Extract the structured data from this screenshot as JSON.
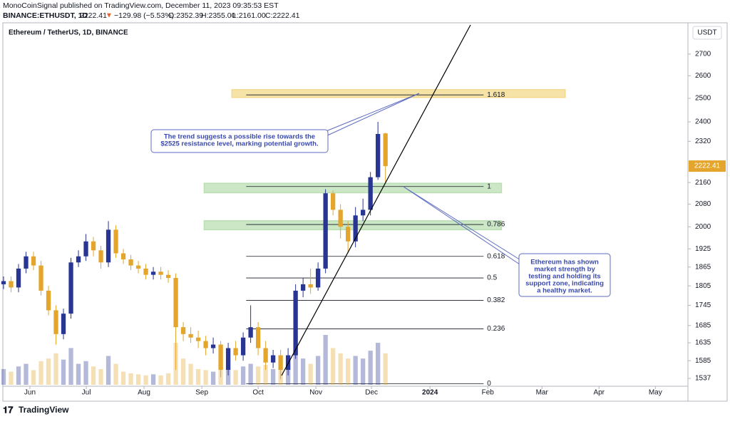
{
  "header": {
    "publisher": "MonoCoinSignal published on TradingView.com, December 11, 2023 09:35:53 EST",
    "symbol": "BINANCE:ETHUSDT, 1D",
    "last": "2222.41",
    "arrow": "▼",
    "change": "−129.98 (−5.53%)",
    "open": "O:2352.39",
    "high": "H:2355.00",
    "low": "L:2161.00",
    "close": "C:2222.41"
  },
  "footer": {
    "brand": "TradingView"
  },
  "chart_data": {
    "type": "candlestick",
    "title": "Ethereum / TetherUS, 1D, BINANCE",
    "currency": "USDT",
    "log_scale": true,
    "ylim": [
      1520,
      2840
    ],
    "yticks": [
      2700,
      2600,
      2500,
      2400,
      2320,
      2160,
      2080,
      2000,
      1925,
      1865,
      1805,
      1745,
      1685,
      1635,
      1585,
      1537
    ],
    "xlim": [
      0,
      91.4
    ],
    "xticks": [
      {
        "value": 3.52,
        "label": "Jun"
      },
      {
        "value": 11.05,
        "label": "Jul"
      },
      {
        "value": 18.76,
        "label": "Aug"
      },
      {
        "value": 26.48,
        "label": "Sep"
      },
      {
        "value": 34,
        "label": "Oct"
      },
      {
        "value": 41.71,
        "label": "Nov"
      },
      {
        "value": 49.14,
        "label": "Dec"
      },
      {
        "value": 56.95,
        "label": "2024"
      },
      {
        "value": 64.67,
        "label": "Feb"
      },
      {
        "value": 71.9,
        "label": "Mar"
      },
      {
        "value": 79.52,
        "label": "Apr"
      },
      {
        "value": 87.05,
        "label": "May"
      }
    ],
    "up_color": "#283593",
    "down_color": "#e3a52b",
    "open": [
      1810,
      1820,
      1800,
      1860,
      1900,
      1870,
      1790,
      1730,
      1660,
      1720,
      1880,
      1900,
      1950,
      1920,
      1880,
      1990,
      1910,
      1890,
      1870,
      1860,
      1840,
      1850,
      1840,
      1830,
      1680,
      1660,
      1650,
      1640,
      1620,
      1630,
      1560,
      1620,
      1600,
      1650,
      1680,
      1620,
      1580,
      1600,
      1560,
      1600,
      1790,
      1810,
      1800,
      1860,
      2120,
      2060,
      2000,
      1950,
      2040,
      2060,
      2180,
      2352.39
    ],
    "high": [
      1835,
      1835,
      1875,
      1915,
      1915,
      1885,
      1805,
      1745,
      1735,
      1895,
      1920,
      1975,
      1965,
      1935,
      2020,
      2005,
      1925,
      1905,
      1885,
      1875,
      1865,
      1865,
      1855,
      1845,
      1695,
      1680,
      1670,
      1655,
      1650,
      1640,
      1635,
      1640,
      1665,
      1745,
      1695,
      1640,
      1615,
      1615,
      1620,
      1810,
      1830,
      1860,
      1880,
      2135,
      2130,
      2080,
      2020,
      2070,
      2100,
      2200,
      2400,
      2355
    ],
    "low": [
      1795,
      1785,
      1785,
      1845,
      1855,
      1775,
      1715,
      1630,
      1645,
      1705,
      1865,
      1885,
      1900,
      1860,
      1865,
      1895,
      1875,
      1855,
      1845,
      1825,
      1825,
      1825,
      1815,
      1560,
      1640,
      1635,
      1620,
      1600,
      1605,
      1540,
      1545,
      1585,
      1585,
      1635,
      1600,
      1560,
      1565,
      1535,
      1545,
      1590,
      1770,
      1780,
      1790,
      1845,
      2040,
      1960,
      1910,
      1930,
      2020,
      2040,
      2170,
      2161
    ],
    "close": [
      1820,
      1800,
      1860,
      1900,
      1870,
      1790,
      1730,
      1660,
      1720,
      1880,
      1900,
      1950,
      1920,
      1880,
      1990,
      1910,
      1890,
      1870,
      1860,
      1840,
      1850,
      1840,
      1830,
      1680,
      1660,
      1650,
      1640,
      1620,
      1630,
      1560,
      1620,
      1600,
      1650,
      1680,
      1620,
      1580,
      1600,
      1560,
      1600,
      1790,
      1810,
      1800,
      1860,
      2120,
      2060,
      2000,
      1950,
      2040,
      2060,
      2180,
      2350,
      2222.41
    ],
    "volume": [
      30,
      25,
      35,
      40,
      28,
      45,
      50,
      60,
      48,
      70,
      40,
      45,
      35,
      30,
      55,
      40,
      25,
      22,
      20,
      18,
      20,
      18,
      22,
      80,
      50,
      40,
      30,
      28,
      25,
      45,
      30,
      28,
      35,
      40,
      35,
      38,
      30,
      45,
      40,
      75,
      50,
      40,
      55,
      95,
      70,
      60,
      50,
      55,
      50,
      65,
      80,
      60
    ],
    "zones": [
      {
        "low": 2504,
        "high": 2538,
        "x": [
          30.5,
          75
        ],
        "color": "#f3d98a"
      },
      {
        "low": 2122,
        "high": 2157,
        "x": [
          26.8,
          66.5
        ],
        "color": "#b9dfb3"
      },
      {
        "low": 1990,
        "high": 2021,
        "x": [
          26.8,
          66.5
        ],
        "color": "#b9dfb3"
      }
    ],
    "fib_x": [
      32.4,
      64.1
    ],
    "fib_levels": [
      {
        "ratio": 1.618,
        "price": 2515
      },
      {
        "ratio": 1,
        "price": 2145
      },
      {
        "ratio": 0.786,
        "price": 2008
      },
      {
        "ratio": 0.618,
        "price": 1900
      },
      {
        "ratio": 0.5,
        "price": 1830
      },
      {
        "ratio": 0.382,
        "price": 1760
      },
      {
        "ratio": 0.236,
        "price": 1675
      },
      {
        "ratio": 0,
        "price": 1523
      }
    ],
    "annotations": [
      {
        "lines": [
          "The trend suggests a possible rise towards the",
          "$2525 resistance level, marking potential growth."
        ]
      },
      {
        "lines": [
          "Ethereum has shown",
          "market strength by",
          "testing and holding its",
          "support zone, indicating",
          "a healthy market."
        ]
      }
    ]
  }
}
